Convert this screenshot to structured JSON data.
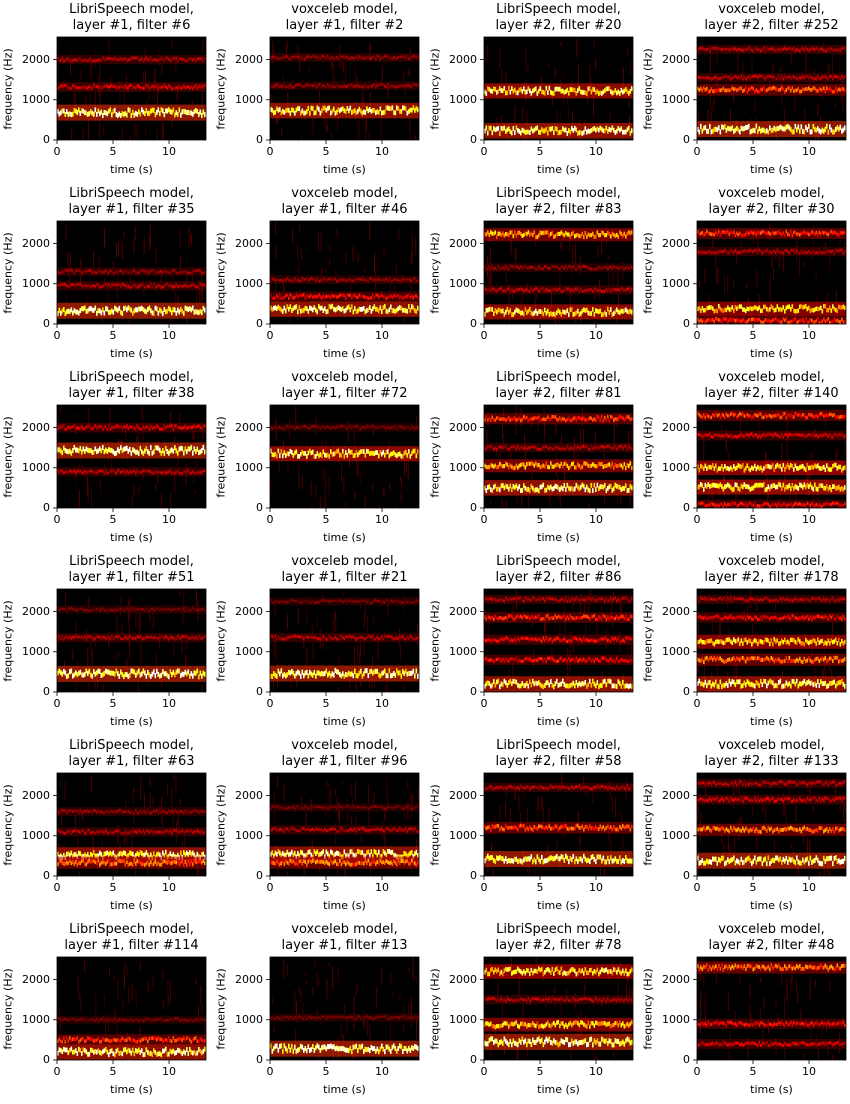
{
  "chart_data": [
    {
      "type": "heatmap",
      "title": [
        "LibriSpeech model,",
        "layer #1, filter #6"
      ],
      "xlabel": "time (s)",
      "ylabel": "frequency (Hz)",
      "xlim": [
        0,
        13.3
      ],
      "ylim": [
        0,
        2560
      ],
      "xticks": [
        0,
        5,
        10
      ],
      "yticks": [
        0,
        1000,
        2000
      ],
      "bands": [
        {
          "freq": 680,
          "intensity": 1.0
        },
        {
          "freq": 1320,
          "intensity": 0.35
        },
        {
          "freq": 2000,
          "intensity": 0.3
        }
      ]
    },
    {
      "type": "heatmap",
      "title": [
        "voxceleb model,",
        "layer #1, filter #2"
      ],
      "xlabel": "time (s)",
      "ylabel": "frequency (Hz)",
      "xlim": [
        0,
        13.3
      ],
      "ylim": [
        0,
        2560
      ],
      "xticks": [
        0,
        5,
        10
      ],
      "yticks": [
        0,
        1000,
        2000
      ],
      "bands": [
        {
          "freq": 730,
          "intensity": 0.95
        },
        {
          "freq": 1350,
          "intensity": 0.25
        },
        {
          "freq": 2050,
          "intensity": 0.25
        }
      ]
    },
    {
      "type": "heatmap",
      "title": [
        "LibriSpeech model,",
        "layer #2, filter #20"
      ],
      "xlabel": "time (s)",
      "ylabel": "frequency (Hz)",
      "xlim": [
        0,
        13.3
      ],
      "ylim": [
        0,
        2560
      ],
      "xticks": [
        0,
        5,
        10
      ],
      "yticks": [
        0,
        1000,
        2000
      ],
      "bands": [
        {
          "freq": 230,
          "intensity": 0.95
        },
        {
          "freq": 1220,
          "intensity": 0.9
        }
      ]
    },
    {
      "type": "heatmap",
      "title": [
        "voxceleb model,",
        "layer #2, filter #252"
      ],
      "xlabel": "time (s)",
      "ylabel": "frequency (Hz)",
      "xlim": [
        0,
        13.3
      ],
      "ylim": [
        0,
        2560
      ],
      "xticks": [
        0,
        5,
        10
      ],
      "yticks": [
        0,
        1000,
        2000
      ],
      "bands": [
        {
          "freq": 270,
          "intensity": 1.0
        },
        {
          "freq": 1250,
          "intensity": 0.55
        },
        {
          "freq": 1550,
          "intensity": 0.3
        },
        {
          "freq": 2250,
          "intensity": 0.3
        }
      ]
    },
    {
      "type": "heatmap",
      "title": [
        "LibriSpeech model,",
        "layer #1, filter #35"
      ],
      "xlabel": "time (s)",
      "ylabel": "frequency (Hz)",
      "xlim": [
        0,
        13.3
      ],
      "ylim": [
        0,
        2560
      ],
      "xticks": [
        0,
        5,
        10
      ],
      "yticks": [
        0,
        1000,
        2000
      ],
      "bands": [
        {
          "freq": 330,
          "intensity": 1.0
        },
        {
          "freq": 950,
          "intensity": 0.3
        },
        {
          "freq": 1300,
          "intensity": 0.25
        }
      ]
    },
    {
      "type": "heatmap",
      "title": [
        "voxceleb model,",
        "layer #1, filter #46"
      ],
      "xlabel": "time (s)",
      "ylabel": "frequency (Hz)",
      "xlim": [
        0,
        13.3
      ],
      "ylim": [
        0,
        2560
      ],
      "xticks": [
        0,
        5,
        10
      ],
      "yticks": [
        0,
        1000,
        2000
      ],
      "bands": [
        {
          "freq": 370,
          "intensity": 0.95
        },
        {
          "freq": 680,
          "intensity": 0.4
        },
        {
          "freq": 1100,
          "intensity": 0.25
        }
      ]
    },
    {
      "type": "heatmap",
      "title": [
        "LibriSpeech model,",
        "layer #2, filter #83"
      ],
      "xlabel": "time (s)",
      "ylabel": "frequency (Hz)",
      "xlim": [
        0,
        13.3
      ],
      "ylim": [
        0,
        2560
      ],
      "xticks": [
        0,
        5,
        10
      ],
      "yticks": [
        0,
        1000,
        2000
      ],
      "bands": [
        {
          "freq": 300,
          "intensity": 0.9
        },
        {
          "freq": 2220,
          "intensity": 0.7
        },
        {
          "freq": 850,
          "intensity": 0.3
        },
        {
          "freq": 1400,
          "intensity": 0.25
        }
      ]
    },
    {
      "type": "heatmap",
      "title": [
        "voxceleb model,",
        "layer #2, filter #30"
      ],
      "xlabel": "time (s)",
      "ylabel": "frequency (Hz)",
      "xlim": [
        0,
        13.3
      ],
      "ylim": [
        0,
        2560
      ],
      "xticks": [
        0,
        5,
        10
      ],
      "yticks": [
        0,
        1000,
        2000
      ],
      "bands": [
        {
          "freq": 380,
          "intensity": 0.8
        },
        {
          "freq": 80,
          "intensity": 0.5
        },
        {
          "freq": 2250,
          "intensity": 0.5
        },
        {
          "freq": 1800,
          "intensity": 0.3
        }
      ]
    },
    {
      "type": "heatmap",
      "title": [
        "LibriSpeech model,",
        "layer #1, filter #38"
      ],
      "xlabel": "time (s)",
      "ylabel": "frequency (Hz)",
      "xlim": [
        0,
        13.3
      ],
      "ylim": [
        0,
        2560
      ],
      "xticks": [
        0,
        5,
        10
      ],
      "yticks": [
        0,
        1000,
        2000
      ],
      "bands": [
        {
          "freq": 1430,
          "intensity": 1.0
        },
        {
          "freq": 900,
          "intensity": 0.3
        },
        {
          "freq": 2000,
          "intensity": 0.35
        }
      ]
    },
    {
      "type": "heatmap",
      "title": [
        "voxceleb model,",
        "layer #1, filter #72"
      ],
      "xlabel": "time (s)",
      "ylabel": "frequency (Hz)",
      "xlim": [
        0,
        13.3
      ],
      "ylim": [
        0,
        2560
      ],
      "xticks": [
        0,
        5,
        10
      ],
      "yticks": [
        0,
        1000,
        2000
      ],
      "bands": [
        {
          "freq": 1350,
          "intensity": 0.9
        },
        {
          "freq": 2000,
          "intensity": 0.2
        }
      ]
    },
    {
      "type": "heatmap",
      "title": [
        "LibriSpeech model,",
        "layer #2, filter #81"
      ],
      "xlabel": "time (s)",
      "ylabel": "frequency (Hz)",
      "xlim": [
        0,
        13.3
      ],
      "ylim": [
        0,
        2560
      ],
      "xticks": [
        0,
        5,
        10
      ],
      "yticks": [
        0,
        1000,
        2000
      ],
      "bands": [
        {
          "freq": 500,
          "intensity": 0.95
        },
        {
          "freq": 1050,
          "intensity": 0.7
        },
        {
          "freq": 2220,
          "intensity": 0.5
        },
        {
          "freq": 1500,
          "intensity": 0.3
        }
      ]
    },
    {
      "type": "heatmap",
      "title": [
        "voxceleb model,",
        "layer #2, filter #140"
      ],
      "xlabel": "time (s)",
      "ylabel": "frequency (Hz)",
      "xlim": [
        0,
        13.3
      ],
      "ylim": [
        0,
        2560
      ],
      "xticks": [
        0,
        5,
        10
      ],
      "yticks": [
        0,
        1000,
        2000
      ],
      "bands": [
        {
          "freq": 520,
          "intensity": 0.9
        },
        {
          "freq": 1000,
          "intensity": 0.85
        },
        {
          "freq": 2300,
          "intensity": 0.5
        },
        {
          "freq": 1800,
          "intensity": 0.35
        },
        {
          "freq": 80,
          "intensity": 0.4
        }
      ]
    },
    {
      "type": "heatmap",
      "title": [
        "LibriSpeech model,",
        "layer #1, filter #51"
      ],
      "xlabel": "time (s)",
      "ylabel": "frequency (Hz)",
      "xlim": [
        0,
        13.3
      ],
      "ylim": [
        0,
        2560
      ],
      "xticks": [
        0,
        5,
        10
      ],
      "yticks": [
        0,
        1000,
        2000
      ],
      "bands": [
        {
          "freq": 450,
          "intensity": 1.0
        },
        {
          "freq": 1350,
          "intensity": 0.3
        },
        {
          "freq": 2050,
          "intensity": 0.2
        }
      ]
    },
    {
      "type": "heatmap",
      "title": [
        "voxceleb model,",
        "layer #1, filter #21"
      ],
      "xlabel": "time (s)",
      "ylabel": "frequency (Hz)",
      "xlim": [
        0,
        13.3
      ],
      "ylim": [
        0,
        2560
      ],
      "xticks": [
        0,
        5,
        10
      ],
      "yticks": [
        0,
        1000,
        2000
      ],
      "bands": [
        {
          "freq": 460,
          "intensity": 1.0
        },
        {
          "freq": 1350,
          "intensity": 0.3
        },
        {
          "freq": 2250,
          "intensity": 0.2
        }
      ]
    },
    {
      "type": "heatmap",
      "title": [
        "LibriSpeech model,",
        "layer #2, filter #86"
      ],
      "xlabel": "time (s)",
      "ylabel": "frequency (Hz)",
      "xlim": [
        0,
        13.3
      ],
      "ylim": [
        0,
        2560
      ],
      "xticks": [
        0,
        5,
        10
      ],
      "yticks": [
        0,
        1000,
        2000
      ],
      "bands": [
        {
          "freq": 200,
          "intensity": 0.95
        },
        {
          "freq": 800,
          "intensity": 0.4
        },
        {
          "freq": 1300,
          "intensity": 0.4
        },
        {
          "freq": 1850,
          "intensity": 0.45
        },
        {
          "freq": 2300,
          "intensity": 0.3
        }
      ]
    },
    {
      "type": "heatmap",
      "title": [
        "voxceleb model,",
        "layer #2, filter #178"
      ],
      "xlabel": "time (s)",
      "ylabel": "frequency (Hz)",
      "xlim": [
        0,
        13.3
      ],
      "ylim": [
        0,
        2560
      ],
      "xticks": [
        0,
        5,
        10
      ],
      "yticks": [
        0,
        1000,
        2000
      ],
      "bands": [
        {
          "freq": 200,
          "intensity": 0.95
        },
        {
          "freq": 800,
          "intensity": 0.6
        },
        {
          "freq": 1250,
          "intensity": 0.8
        },
        {
          "freq": 1850,
          "intensity": 0.4
        },
        {
          "freq": 2300,
          "intensity": 0.3
        }
      ]
    },
    {
      "type": "heatmap",
      "title": [
        "LibriSpeech model,",
        "layer #1, filter #63"
      ],
      "xlabel": "time (s)",
      "ylabel": "frequency (Hz)",
      "xlim": [
        0,
        13.3
      ],
      "ylim": [
        0,
        2560
      ],
      "xticks": [
        0,
        5,
        10
      ],
      "yticks": [
        0,
        1000,
        2000
      ],
      "bands": [
        {
          "freq": 520,
          "intensity": 0.95
        },
        {
          "freq": 330,
          "intensity": 0.6
        },
        {
          "freq": 1100,
          "intensity": 0.3
        },
        {
          "freq": 1600,
          "intensity": 0.25
        }
      ]
    },
    {
      "type": "heatmap",
      "title": [
        "voxceleb model,",
        "layer #1, filter #96"
      ],
      "xlabel": "time (s)",
      "ylabel": "frequency (Hz)",
      "xlim": [
        0,
        13.3
      ],
      "ylim": [
        0,
        2560
      ],
      "xticks": [
        0,
        5,
        10
      ],
      "yticks": [
        0,
        1000,
        2000
      ],
      "bands": [
        {
          "freq": 540,
          "intensity": 0.95
        },
        {
          "freq": 330,
          "intensity": 0.6
        },
        {
          "freq": 1150,
          "intensity": 0.3
        },
        {
          "freq": 1700,
          "intensity": 0.2
        }
      ]
    },
    {
      "type": "heatmap",
      "title": [
        "LibriSpeech model,",
        "layer #2, filter #58"
      ],
      "xlabel": "time (s)",
      "ylabel": "frequency (Hz)",
      "xlim": [
        0,
        13.3
      ],
      "ylim": [
        0,
        2560
      ],
      "xticks": [
        0,
        5,
        10
      ],
      "yticks": [
        0,
        1000,
        2000
      ],
      "bands": [
        {
          "freq": 420,
          "intensity": 1.0
        },
        {
          "freq": 1200,
          "intensity": 0.55
        },
        {
          "freq": 2200,
          "intensity": 0.3
        }
      ]
    },
    {
      "type": "heatmap",
      "title": [
        "voxceleb model,",
        "layer #2, filter #133"
      ],
      "xlabel": "time (s)",
      "ylabel": "frequency (Hz)",
      "xlim": [
        0,
        13.3
      ],
      "ylim": [
        0,
        2560
      ],
      "xticks": [
        0,
        5,
        10
      ],
      "yticks": [
        0,
        1000,
        2000
      ],
      "bands": [
        {
          "freq": 380,
          "intensity": 1.0
        },
        {
          "freq": 1150,
          "intensity": 0.6
        },
        {
          "freq": 1900,
          "intensity": 0.35
        },
        {
          "freq": 2300,
          "intensity": 0.3
        }
      ]
    },
    {
      "type": "heatmap",
      "title": [
        "LibriSpeech model,",
        "layer #1, filter #114"
      ],
      "xlabel": "time (s)",
      "ylabel": "frequency (Hz)",
      "xlim": [
        0,
        13.3
      ],
      "ylim": [
        0,
        2560
      ],
      "xticks": [
        0,
        5,
        10
      ],
      "yticks": [
        0,
        1000,
        2000
      ],
      "bands": [
        {
          "freq": 200,
          "intensity": 0.95
        },
        {
          "freq": 500,
          "intensity": 0.5
        },
        {
          "freq": 1000,
          "intensity": 0.2
        }
      ]
    },
    {
      "type": "heatmap",
      "title": [
        "voxceleb model,",
        "layer #1, filter #13"
      ],
      "xlabel": "time (s)",
      "ylabel": "frequency (Hz)",
      "xlim": [
        0,
        13.3
      ],
      "ylim": [
        0,
        2560
      ],
      "xticks": [
        0,
        5,
        10
      ],
      "yticks": [
        0,
        1000,
        2000
      ],
      "bands": [
        {
          "freq": 280,
          "intensity": 1.0
        },
        {
          "freq": 1050,
          "intensity": 0.2
        }
      ]
    },
    {
      "type": "heatmap",
      "title": [
        "LibriSpeech model,",
        "layer #2, filter #78"
      ],
      "xlabel": "time (s)",
      "ylabel": "frequency (Hz)",
      "xlim": [
        0,
        13.3
      ],
      "ylim": [
        0,
        2560
      ],
      "xticks": [
        0,
        5,
        10
      ],
      "yticks": [
        0,
        1000,
        2000
      ],
      "bands": [
        {
          "freq": 450,
          "intensity": 1.0
        },
        {
          "freq": 880,
          "intensity": 0.75
        },
        {
          "freq": 2200,
          "intensity": 0.85
        },
        {
          "freq": 1500,
          "intensity": 0.3
        }
      ]
    },
    {
      "type": "heatmap",
      "title": [
        "voxceleb model,",
        "layer #2, filter #48"
      ],
      "xlabel": "time (s)",
      "ylabel": "frequency (Hz)",
      "xlim": [
        0,
        13.3
      ],
      "ylim": [
        0,
        2560
      ],
      "xticks": [
        0,
        5,
        10
      ],
      "yticks": [
        0,
        1000,
        2000
      ],
      "bands": [
        {
          "freq": 2300,
          "intensity": 0.6
        },
        {
          "freq": 900,
          "intensity": 0.4
        },
        {
          "freq": 400,
          "intensity": 0.35
        }
      ]
    }
  ]
}
